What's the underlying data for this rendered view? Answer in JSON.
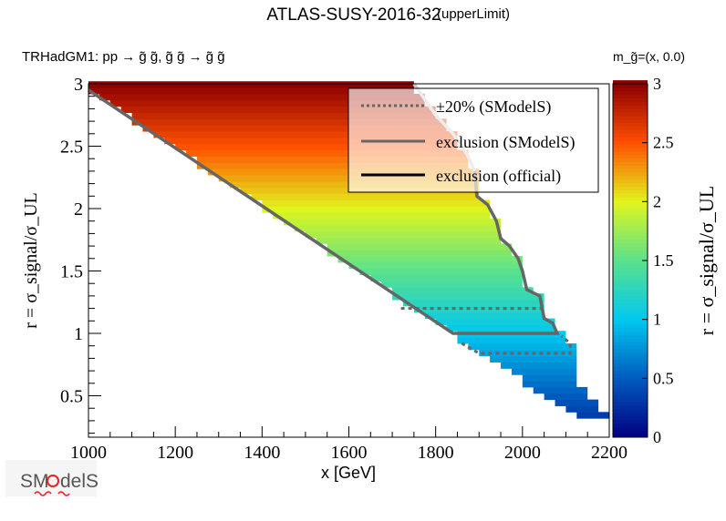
{
  "chart_data": {
    "type": "heatmap",
    "title": "ATLAS-SUSY-2016-32",
    "title_suffix": "(upperLimit)",
    "process": "TRHadGM1: pp  → g̃ g̃, g̃ g̃ → g̃ g̃",
    "mass_note": "m_g̃=(x, 0.0)",
    "xlabel": "x [GeV]",
    "ylabel": "r = σ_signal/σ_UL",
    "zlabel": "r = σ_signal/σ_UL",
    "xlim": [
      1000,
      2200
    ],
    "ylim": [
      0.17,
      3
    ],
    "zlim": [
      0,
      3
    ],
    "x_ticks": [
      "1000",
      "1200",
      "1400",
      "1600",
      "1800",
      "2000",
      "2200"
    ],
    "y_ticks": [
      "0.5",
      "1",
      "1.5",
      "2",
      "2.5",
      "3"
    ],
    "z_ticks": [
      "0",
      "0.5",
      "1",
      "1.5",
      "2",
      "2.5",
      "3"
    ],
    "lower_boundary": [
      [
        1000,
        2.95
      ],
      [
        2200,
        0.15
      ]
    ],
    "upper_boundary": [
      [
        1000,
        3.0
      ],
      [
        1750,
        3.0
      ],
      [
        1770,
        2.9
      ],
      [
        1800,
        2.75
      ],
      [
        1840,
        2.6
      ],
      [
        1870,
        2.45
      ],
      [
        1890,
        2.3
      ],
      [
        1895,
        2.15
      ],
      [
        1920,
        2.05
      ],
      [
        1940,
        1.92
      ],
      [
        1950,
        1.78
      ],
      [
        1970,
        1.72
      ],
      [
        1990,
        1.6
      ],
      [
        2000,
        1.5
      ],
      [
        2010,
        1.38
      ],
      [
        2040,
        1.32
      ],
      [
        2050,
        1.2
      ],
      [
        2055,
        1.12
      ],
      [
        2080,
        1.08
      ],
      [
        2090,
        1.0
      ],
      [
        2110,
        0.92
      ],
      [
        2125,
        0.85
      ],
      [
        2125,
        0.6
      ],
      [
        2160,
        0.5
      ],
      [
        2200,
        0.3
      ]
    ],
    "legend": {
      "placement": "top-right",
      "entries": [
        {
          "label": "±20% (SModelS)",
          "style": "dotted",
          "color": "#666666"
        },
        {
          "label": "exclusion (SModelS)",
          "style": "solid",
          "color": "#666666"
        },
        {
          "label": "exclusion (official)",
          "style": "solid",
          "color": "#000000"
        }
      ]
    },
    "exclusion_smodels": [
      [
        1000,
        2.95
      ],
      [
        1840,
        1.0
      ],
      [
        2080,
        1.0
      ],
      [
        2070,
        1.08
      ],
      [
        2050,
        1.12
      ],
      [
        2040,
        1.3
      ],
      [
        2010,
        1.35
      ],
      [
        2000,
        1.5
      ],
      [
        1990,
        1.6
      ],
      [
        1970,
        1.7
      ],
      [
        1950,
        1.76
      ],
      [
        1940,
        1.9
      ],
      [
        1920,
        2.03
      ],
      [
        1895,
        2.1
      ],
      [
        1890,
        2.3
      ]
    ],
    "exclusion_smodels_light": [
      [
        1890,
        2.3
      ],
      [
        1870,
        2.45
      ],
      [
        1840,
        2.6
      ],
      [
        1800,
        2.75
      ],
      [
        1770,
        2.9
      ],
      [
        1750,
        3.0
      ]
    ],
    "plus_minus_20": [
      [
        [
          1720,
          1.2
        ],
        [
          2050,
          1.2
        ]
      ],
      [
        [
          1860,
          0.92
        ],
        [
          1900,
          0.84
        ],
        [
          2110,
          0.84
        ],
        [
          2110,
          0.92
        ],
        [
          2090,
          0.98
        ]
      ]
    ]
  },
  "logo": {
    "text": "SModelS"
  }
}
